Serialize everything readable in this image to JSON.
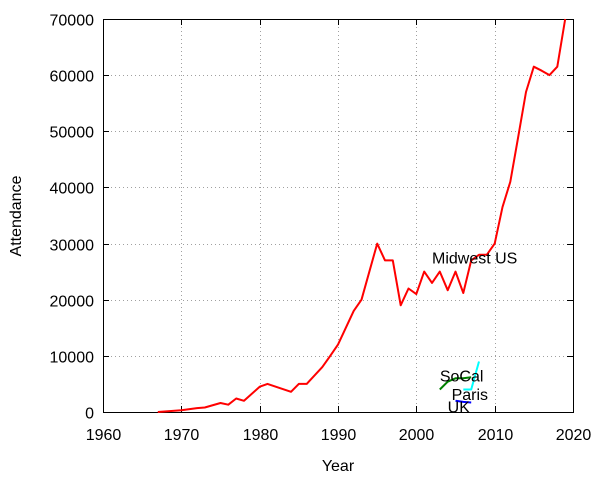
{
  "chart_data": {
    "type": "line",
    "xlabel": "Year",
    "ylabel": "Attendance",
    "xlim": [
      1960,
      2020
    ],
    "ylim": [
      0,
      70000
    ],
    "x_ticks": [
      1960,
      1970,
      1980,
      1990,
      2000,
      2010,
      2020
    ],
    "y_ticks": [
      0,
      10000,
      20000,
      30000,
      40000,
      50000,
      60000,
      70000
    ],
    "grid": true,
    "legend": "none",
    "series": [
      {
        "name": "Midwest US",
        "color": "#ff0000",
        "label_at": [
          2002,
          27500
        ],
        "points": [
          [
            1967,
            0
          ],
          [
            1970,
            300
          ],
          [
            1972,
            700
          ],
          [
            1973,
            800
          ],
          [
            1975,
            1600
          ],
          [
            1976,
            1300
          ],
          [
            1977,
            2400
          ],
          [
            1978,
            2000
          ],
          [
            1980,
            4500
          ],
          [
            1981,
            5000
          ],
          [
            1984,
            3600
          ],
          [
            1985,
            5000
          ],
          [
            1986,
            5000
          ],
          [
            1988,
            8000
          ],
          [
            1989,
            10000
          ],
          [
            1990,
            12000
          ],
          [
            1992,
            18000
          ],
          [
            1993,
            20000
          ],
          [
            1995,
            30000
          ],
          [
            1996,
            27000
          ],
          [
            1997,
            27000
          ],
          [
            1998,
            19000
          ],
          [
            1999,
            22000
          ],
          [
            2000,
            21000
          ],
          [
            2001,
            25000
          ],
          [
            2002,
            23000
          ],
          [
            2003,
            25000
          ],
          [
            2004,
            21700
          ],
          [
            2005,
            25000
          ],
          [
            2006,
            21200
          ],
          [
            2007,
            27000
          ],
          [
            2008,
            28000
          ],
          [
            2009,
            28000
          ],
          [
            2010,
            30000
          ],
          [
            2011,
            36500
          ],
          [
            2012,
            41000
          ],
          [
            2013,
            49000
          ],
          [
            2014,
            57000
          ],
          [
            2015,
            61500
          ],
          [
            2016,
            60800
          ],
          [
            2017,
            60000
          ],
          [
            2018,
            61500
          ],
          [
            2019,
            70000
          ]
        ]
      },
      {
        "name": "SoCal",
        "color": "#008000",
        "label_at": [
          2003,
          6500
        ],
        "points": [
          [
            2003,
            4000
          ],
          [
            2004,
            5400
          ],
          [
            2005,
            6000
          ],
          [
            2006,
            6000
          ],
          [
            2007,
            6200
          ]
        ]
      },
      {
        "name": "Paris",
        "color": "#00ffff",
        "label_at": [
          2004.5,
          3200
        ],
        "points": [
          [
            2006,
            4000
          ],
          [
            2007,
            4000
          ],
          [
            2008,
            9000
          ]
        ]
      },
      {
        "name": "UK",
        "color": "#0000ff",
        "label_at": [
          2004,
          1000
        ],
        "points": [
          [
            2005,
            2000
          ],
          [
            2006,
            1800
          ],
          [
            2007,
            1700
          ]
        ]
      }
    ]
  }
}
